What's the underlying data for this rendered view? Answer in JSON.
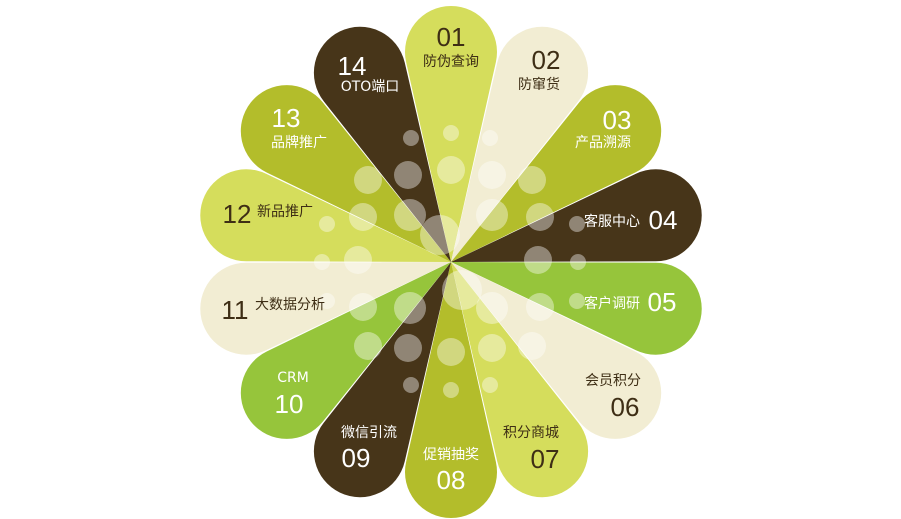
{
  "colors": {
    "yellow_green": "#d5dd5c",
    "cream": "#f2edd3",
    "olive": "#b3bd2b",
    "brown": "#473519",
    "green": "#96c53b",
    "text_dark": "#3e2e15",
    "text_light": "#ffffff"
  },
  "petals": [
    {
      "number": "01",
      "label": "防伪查询",
      "color": "#d5dd5c"
    },
    {
      "number": "02",
      "label": "防窜货",
      "color": "#f2edd3"
    },
    {
      "number": "03",
      "label": "产品溯源",
      "color": "#b3bd2b"
    },
    {
      "number": "04",
      "label": "客服中心",
      "color": "#473519"
    },
    {
      "number": "05",
      "label": "客户调研",
      "color": "#96c53b"
    },
    {
      "number": "06",
      "label": "会员积分",
      "color": "#f2edd3"
    },
    {
      "number": "07",
      "label": "积分商城",
      "color": "#d5dd5c"
    },
    {
      "number": "08",
      "label": "促销抽奖",
      "color": "#b3bd2b"
    },
    {
      "number": "09",
      "label": "微信引流",
      "color": "#473519"
    },
    {
      "number": "10",
      "label": "CRM",
      "color": "#96c53b"
    },
    {
      "number": "11",
      "label": "大数据分析",
      "color": "#f2edd3"
    },
    {
      "number": "12",
      "label": "新品推广",
      "color": "#d5dd5c"
    },
    {
      "number": "13",
      "label": "品牌推广",
      "color": "#b3bd2b"
    },
    {
      "number": "14",
      "label": "OTO端口",
      "color": "#473519"
    }
  ]
}
